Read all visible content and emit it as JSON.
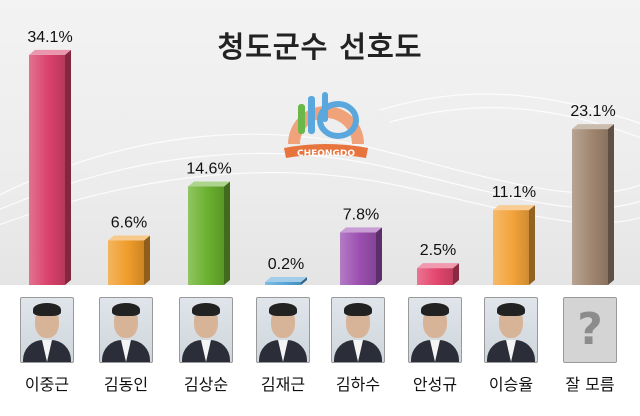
{
  "chart_data": {
    "type": "bar",
    "title": "청도군수 선호도",
    "categories": [
      "이중근",
      "김동인",
      "김상순",
      "김재근",
      "김하수",
      "안성규",
      "이승율",
      "잘 모름"
    ],
    "values": [
      34.1,
      6.6,
      14.6,
      0.2,
      7.8,
      2.5,
      11.1,
      23.1
    ],
    "value_labels": [
      "34.1%",
      "6.6%",
      "14.6%",
      "0.2%",
      "7.8%",
      "2.5%",
      "11.1%",
      "23.1%"
    ],
    "colors": [
      "#d9416b",
      "#f09c2a",
      "#6ab12e",
      "#57a6d8",
      "#9b4fb0",
      "#e3466d",
      "#f3a33a",
      "#a08670"
    ],
    "unit": "%",
    "legend": "none",
    "grid": false,
    "style": "3d"
  },
  "logo": {
    "text": "CHEONGDO"
  },
  "unknown_mark": "?"
}
